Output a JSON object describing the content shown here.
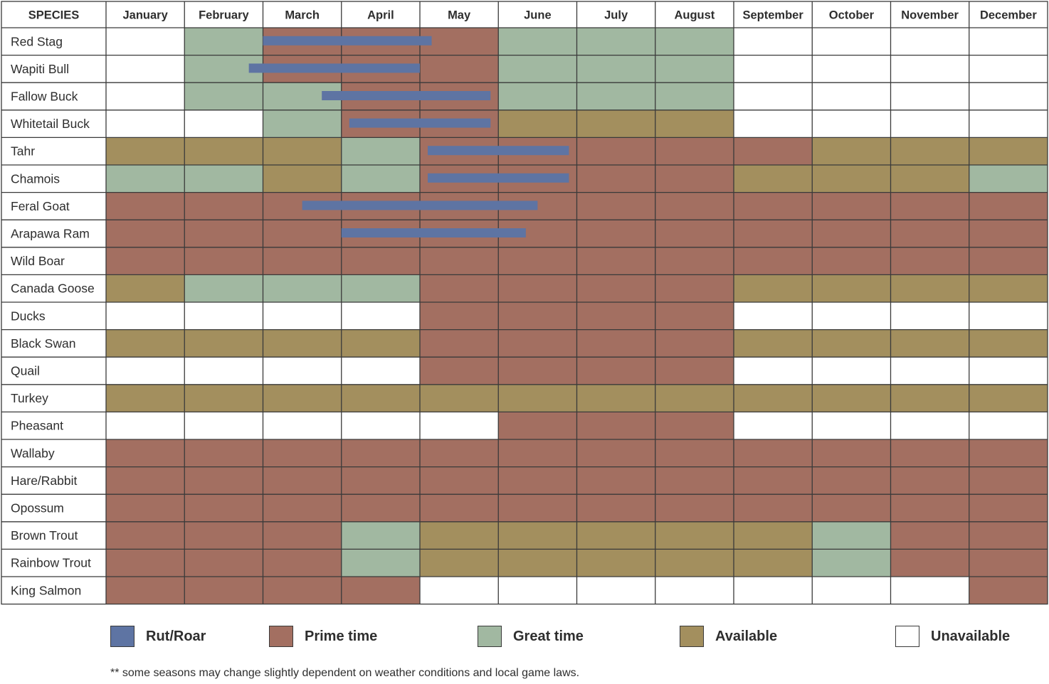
{
  "chart_data": {
    "type": "table",
    "header_label": "SPECIES",
    "months": [
      "January",
      "February",
      "March",
      "April",
      "May",
      "June",
      "July",
      "August",
      "September",
      "October",
      "November",
      "December"
    ],
    "status_colors": {
      "P": "#a36f61",
      "G": "#a1b8a1",
      "A": "#a38f5e",
      "U": "#ffffff"
    },
    "rut_color": "#5e74a3",
    "rows": [
      {
        "species": "Red Stag",
        "months": "UGPPPGGGUUUU",
        "rut": [
          2.0,
          4.15
        ]
      },
      {
        "species": "Wapiti Bull",
        "months": "UGPPPGGGUUUU",
        "rut": [
          1.82,
          4.0
        ]
      },
      {
        "species": "Fallow Buck",
        "months": "UGGPPGGGUUUU",
        "rut": [
          2.75,
          4.9
        ]
      },
      {
        "species": "Whitetail Buck",
        "months": "UUGPPAAAUUUU",
        "rut": [
          3.1,
          4.9
        ]
      },
      {
        "species": "Tahr",
        "months": "AAAGPPPPPAAA",
        "rut": [
          4.1,
          5.9
        ]
      },
      {
        "species": "Chamois",
        "months": "GGAGPPPPAAAG",
        "rut": [
          4.1,
          5.9
        ]
      },
      {
        "species": "Feral Goat",
        "months": "PPPPPPPPPPPP",
        "rut": [
          2.5,
          5.5
        ]
      },
      {
        "species": "Arapawa Ram",
        "months": "PPPPPPPPPPPP",
        "rut": [
          3.0,
          5.35
        ]
      },
      {
        "species": "Wild Boar",
        "months": "PPPPPPPPPPPP"
      },
      {
        "species": "Canada Goose",
        "months": "AGGGPPPPAAAA"
      },
      {
        "species": "Ducks",
        "months": "UUUUPPPPUUUU"
      },
      {
        "species": "Black Swan",
        "months": "AAAAPPPPAAAA"
      },
      {
        "species": "Quail",
        "months": "UUUUPPPPUUUU"
      },
      {
        "species": "Turkey",
        "months": "AAAAAAAAAAAA"
      },
      {
        "species": "Pheasant",
        "months": "UUUUUPPPUUUU"
      },
      {
        "species": "Wallaby",
        "months": "PPPPPPPPPPPP"
      },
      {
        "species": "Hare/Rabbit",
        "months": "PPPPPPPPPPPP"
      },
      {
        "species": "Opossum",
        "months": "PPPPPPPPPPPP"
      },
      {
        "species": "Brown Trout",
        "months": "PPPGAAAAAGPP"
      },
      {
        "species": "Rainbow Trout",
        "months": "PPPGAAAAAGPP"
      },
      {
        "species": "King Salmon",
        "months": "PPPPUUUUUUUP"
      }
    ]
  },
  "legend": [
    {
      "label": "Rut/Roar",
      "color": "#5e74a3"
    },
    {
      "label": "Prime time",
      "color": "#a36f61"
    },
    {
      "label": "Great time",
      "color": "#a1b8a1"
    },
    {
      "label": "Available",
      "color": "#a38f5e"
    },
    {
      "label": "Unavailable",
      "color": "#ffffff"
    }
  ],
  "footnote": "** some seasons may change slightly dependent on weather conditions and local game laws."
}
